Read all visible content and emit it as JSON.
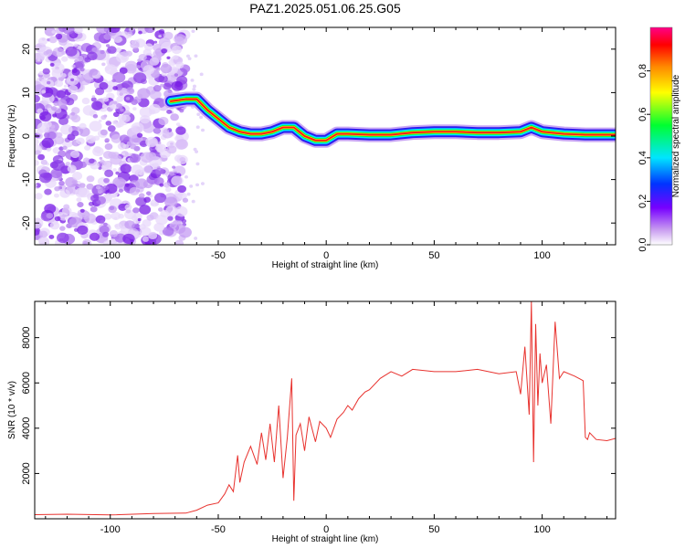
{
  "title": "PAZ1.2025.051.06.25.G05",
  "chart_data": [
    {
      "type": "heatmap",
      "xlabel": "Height of straight line (km)",
      "ylabel": "Frequency (Hz)",
      "xlim": [
        -135,
        134
      ],
      "ylim": [
        -25,
        25
      ],
      "x_ticks": [
        -100,
        -50,
        0,
        50,
        100
      ],
      "y_ticks": [
        -20,
        -10,
        0,
        10,
        20
      ],
      "colorbar": {
        "label": "Normalized spectral amplitude",
        "range": [
          0,
          1
        ],
        "ticks": [
          0.0,
          0.2,
          0.4,
          0.6,
          0.8
        ],
        "colormap": "hsv-like (white/violet low, blue, cyan, green, yellow, orange, red, magenta high)"
      },
      "ridge": {
        "x": [
          -72,
          -65,
          -60,
          -55,
          -50,
          -45,
          -40,
          -35,
          -30,
          -25,
          -20,
          -15,
          -10,
          -5,
          0,
          5,
          10,
          20,
          30,
          40,
          50,
          60,
          70,
          80,
          90,
          95,
          100,
          110,
          120,
          134
        ],
        "y": [
          8,
          8.5,
          8.5,
          6,
          4,
          2,
          1,
          0.5,
          0.5,
          1,
          2,
          2,
          0,
          -1,
          -1,
          0.5,
          0.5,
          0.3,
          0.3,
          0.8,
          1,
          1,
          0.8,
          0.8,
          1,
          2,
          1,
          0.5,
          0.3,
          0.3
        ]
      },
      "noise_region": [
        -135,
        -65
      ]
    },
    {
      "type": "line",
      "xlabel": "Height of straight line (km)",
      "ylabel": "SNR (10 * v/v)",
      "xlim": [
        -135,
        134
      ],
      "ylim": [
        0,
        9600
      ],
      "x_ticks": [
        -100,
        -50,
        0,
        50,
        100
      ],
      "y_ticks": [
        2000,
        4000,
        6000,
        8000
      ],
      "line_color": "#e8322e",
      "series": [
        {
          "x": [
            -135,
            -120,
            -100,
            -80,
            -65,
            -60,
            -55,
            -50,
            -47,
            -45,
            -43,
            -41,
            -40,
            -38,
            -35,
            -32,
            -30,
            -28,
            -26,
            -24,
            -22,
            -20,
            -18,
            -16,
            -15,
            -14,
            -12,
            -10,
            -8,
            -5,
            -3,
            0,
            2,
            5,
            8,
            10,
            12,
            15,
            18,
            20,
            25,
            30,
            35,
            40,
            50,
            60,
            70,
            80,
            88,
            90,
            92,
            94,
            95,
            96,
            97,
            98,
            99,
            100,
            102,
            104,
            106,
            108,
            110,
            115,
            119,
            120,
            121,
            122,
            125,
            130,
            134
          ],
          "y": [
            180,
            200,
            170,
            230,
            250,
            380,
            600,
            700,
            1100,
            1500,
            1200,
            2800,
            1600,
            2500,
            3200,
            2400,
            3800,
            2600,
            4200,
            2500,
            5000,
            1800,
            3600,
            6200,
            800,
            3700,
            4200,
            3000,
            4500,
            3400,
            4300,
            4000,
            3600,
            4400,
            4700,
            5000,
            4800,
            5300,
            5600,
            5700,
            6200,
            6500,
            6300,
            6600,
            6500,
            6500,
            6600,
            6400,
            6500,
            5500,
            7600,
            4600,
            9600,
            2500,
            8600,
            5000,
            7300,
            6000,
            6800,
            4200,
            8700,
            6200,
            6500,
            6300,
            6100,
            3600,
            3500,
            3800,
            3500,
            3450,
            3550
          ]
        }
      ]
    }
  ]
}
